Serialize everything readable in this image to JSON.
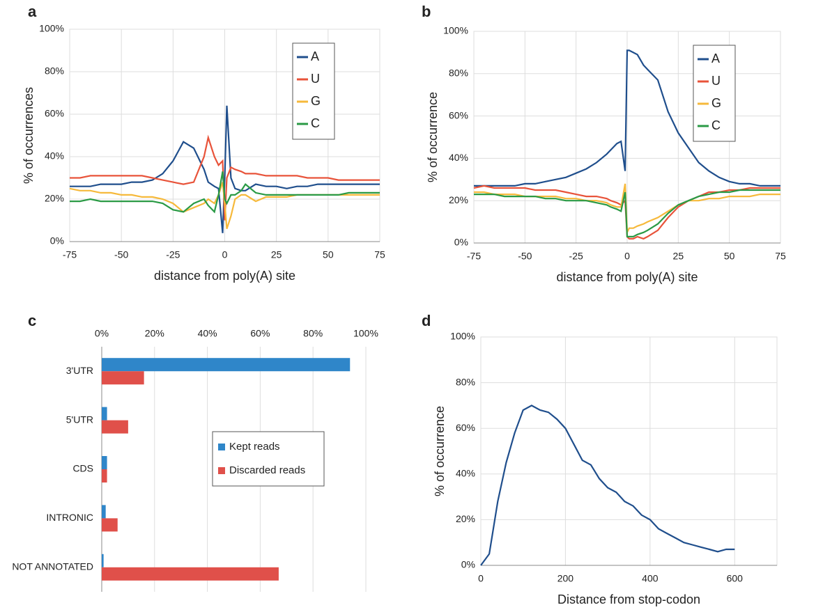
{
  "chart_data": [
    {
      "type": "line",
      "label": "a",
      "x_label": "distance from poly(A) site",
      "y_label": "% of occurrences",
      "x": [
        -75,
        -70,
        -65,
        -60,
        -55,
        -50,
        -45,
        -40,
        -35,
        -30,
        -25,
        -20,
        -15,
        -10,
        -8,
        -5,
        -3,
        -1,
        0,
        1,
        3,
        5,
        8,
        10,
        15,
        20,
        25,
        30,
        35,
        40,
        45,
        50,
        55,
        60,
        65,
        70,
        75
      ],
      "xlim": [
        -75,
        75
      ],
      "xticks": [
        -75,
        -50,
        -25,
        0,
        25,
        50,
        75
      ],
      "ylim": [
        0,
        100
      ],
      "yticks": [
        {
          "value": 0,
          "label": "0%"
        },
        {
          "value": 20,
          "label": "20%"
        },
        {
          "value": 40,
          "label": "40%"
        },
        {
          "value": 60,
          "label": "60%"
        },
        {
          "value": 80,
          "label": "80%"
        },
        {
          "value": 100,
          "label": "100%"
        }
      ],
      "grid": true,
      "legend": "upper right",
      "series": [
        {
          "name": "A",
          "color": "#1f4e8c",
          "values": [
            26,
            26,
            26,
            27,
            27,
            27,
            28,
            28,
            29,
            32,
            38,
            47,
            44,
            34,
            28,
            26,
            25,
            4,
            30,
            64,
            30,
            25,
            24,
            24,
            27,
            26,
            26,
            25,
            26,
            26,
            27,
            27,
            27,
            27,
            27,
            27,
            27
          ]
        },
        {
          "name": "U",
          "color": "#e8533a",
          "values": [
            30,
            30,
            31,
            31,
            31,
            31,
            31,
            31,
            30,
            29,
            28,
            27,
            28,
            40,
            49,
            40,
            36,
            38,
            10,
            30,
            35,
            34,
            33,
            32,
            32,
            31,
            31,
            31,
            31,
            30,
            30,
            30,
            29,
            29,
            29,
            29,
            29
          ]
        },
        {
          "name": "G",
          "color": "#f6b93b",
          "values": [
            25,
            24,
            24,
            23,
            23,
            22,
            22,
            21,
            21,
            20,
            18,
            14,
            16,
            18,
            20,
            18,
            22,
            28,
            18,
            6,
            12,
            20,
            22,
            22,
            19,
            21,
            21,
            21,
            22,
            22,
            22,
            22,
            22,
            22,
            22,
            22,
            22
          ]
        },
        {
          "name": "C",
          "color": "#2a9a45",
          "values": [
            19,
            19,
            20,
            19,
            19,
            19,
            19,
            19,
            19,
            18,
            15,
            14,
            18,
            20,
            17,
            14,
            22,
            33,
            20,
            18,
            22,
            22,
            24,
            27,
            23,
            22,
            22,
            22,
            22,
            22,
            22,
            22,
            22,
            23,
            23,
            23,
            23
          ]
        }
      ]
    },
    {
      "type": "line",
      "label": "b",
      "x_label": "distance from poly(A) site",
      "y_label": "% of occurrence",
      "x": [
        -75,
        -70,
        -65,
        -60,
        -55,
        -50,
        -45,
        -40,
        -35,
        -30,
        -25,
        -20,
        -15,
        -10,
        -8,
        -5,
        -3,
        -1,
        0,
        1,
        3,
        5,
        8,
        10,
        15,
        20,
        25,
        30,
        35,
        40,
        45,
        50,
        55,
        60,
        65,
        70,
        75
      ],
      "xlim": [
        -75,
        75
      ],
      "xticks": [
        -75,
        -50,
        -25,
        0,
        25,
        50,
        75
      ],
      "ylim": [
        0,
        100
      ],
      "yticks": [
        {
          "value": 0,
          "label": "0%"
        },
        {
          "value": 20,
          "label": "20%"
        },
        {
          "value": 40,
          "label": "40%"
        },
        {
          "value": 60,
          "label": "60%"
        },
        {
          "value": 80,
          "label": "80%"
        },
        {
          "value": 100,
          "label": "100%"
        }
      ],
      "grid": true,
      "legend": "upper right",
      "series": [
        {
          "name": "A",
          "color": "#1f4e8c",
          "values": [
            27,
            27,
            27,
            27,
            27,
            28,
            28,
            29,
            30,
            31,
            33,
            35,
            38,
            42,
            44,
            47,
            48,
            34,
            91,
            91,
            90,
            89,
            84,
            82,
            77,
            62,
            52,
            45,
            38,
            34,
            31,
            29,
            28,
            28,
            27,
            27,
            27
          ]
        },
        {
          "name": "U",
          "color": "#e8533a",
          "values": [
            26,
            27,
            26,
            26,
            26,
            26,
            25,
            25,
            25,
            24,
            23,
            22,
            22,
            21,
            20,
            19,
            18,
            20,
            3,
            2,
            2,
            3,
            2,
            3,
            6,
            12,
            17,
            20,
            22,
            24,
            24,
            25,
            25,
            26,
            26,
            26,
            26
          ]
        },
        {
          "name": "G",
          "color": "#f6b93b",
          "values": [
            24,
            24,
            23,
            23,
            23,
            22,
            22,
            22,
            22,
            21,
            21,
            20,
            20,
            19,
            18,
            17,
            17,
            28,
            5,
            7,
            7,
            8,
            9,
            10,
            12,
            15,
            18,
            20,
            20,
            21,
            21,
            22,
            22,
            22,
            23,
            23,
            23
          ]
        },
        {
          "name": "C",
          "color": "#2a9a45",
          "values": [
            23,
            23,
            23,
            22,
            22,
            22,
            22,
            21,
            21,
            20,
            20,
            20,
            19,
            18,
            17,
            16,
            15,
            24,
            3,
            3,
            3,
            4,
            5,
            6,
            9,
            14,
            18,
            20,
            22,
            23,
            24,
            24,
            25,
            25,
            25,
            25,
            25
          ]
        }
      ]
    },
    {
      "type": "hbar",
      "label": "c",
      "categories": [
        "3'UTR",
        "5'UTR",
        "CDS",
        "INTRONIC",
        "NOT ANNOTATED"
      ],
      "xlim": [
        0,
        100
      ],
      "xticks": [
        {
          "value": 0,
          "label": "0%"
        },
        {
          "value": 20,
          "label": "20%"
        },
        {
          "value": 40,
          "label": "40%"
        },
        {
          "value": 60,
          "label": "60%"
        },
        {
          "value": 80,
          "label": "80%"
        },
        {
          "value": 100,
          "label": "100%"
        }
      ],
      "grid": true,
      "legend": "center right",
      "series": [
        {
          "name": "Kept reads",
          "color": "#2f86c9",
          "values": [
            94,
            2,
            2,
            1.5,
            0.7
          ]
        },
        {
          "name": "Discarded reads",
          "color": "#e0504a",
          "values": [
            16,
            10,
            2,
            6,
            67
          ]
        }
      ]
    },
    {
      "type": "line",
      "label": "d",
      "x_label": "Distance from stop-codon",
      "y_label": "% of occurrence",
      "x": [
        0,
        20,
        40,
        60,
        80,
        100,
        120,
        140,
        160,
        180,
        200,
        220,
        240,
        260,
        280,
        300,
        320,
        340,
        360,
        380,
        400,
        420,
        440,
        460,
        480,
        500,
        520,
        540,
        560,
        580,
        600
      ],
      "xlim": [
        0,
        700
      ],
      "xticks": [
        0,
        200,
        400,
        600
      ],
      "ylim": [
        0,
        100
      ],
      "yticks": [
        {
          "value": 0,
          "label": "0%"
        },
        {
          "value": 20,
          "label": "20%"
        },
        {
          "value": 40,
          "label": "40%"
        },
        {
          "value": 60,
          "label": "60%"
        },
        {
          "value": 80,
          "label": "80%"
        },
        {
          "value": 100,
          "label": "100%"
        }
      ],
      "grid": true,
      "series": [
        {
          "color": "#1f4e8c",
          "values": [
            0,
            5,
            28,
            45,
            58,
            68,
            70,
            68,
            67,
            64,
            60,
            53,
            46,
            44,
            38,
            34,
            32,
            28,
            26,
            22,
            20,
            16,
            14,
            12,
            10,
            9,
            8,
            7,
            6,
            7,
            7
          ]
        }
      ]
    }
  ]
}
